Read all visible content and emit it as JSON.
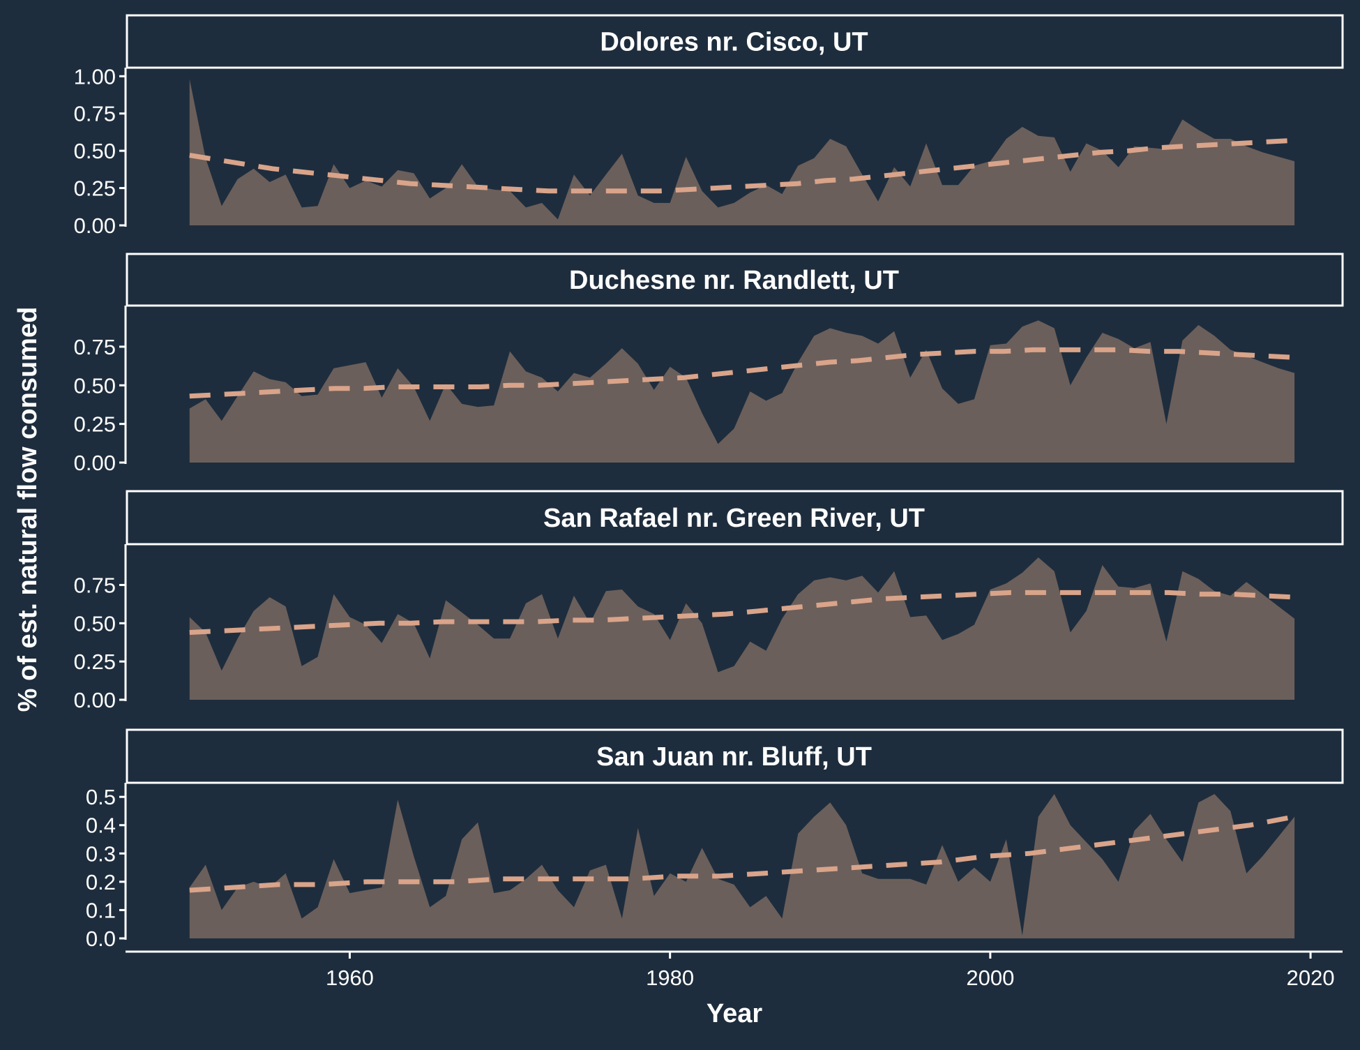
{
  "colors": {
    "background": "#1e2d3d",
    "area_fill": "#6b5f5b",
    "trend_line": "#d9a48a",
    "text": "#ffffff",
    "axis": "#ffffff"
  },
  "chart_data": {
    "type": "area",
    "xlabel": "Year",
    "ylabel": "% of est. natural flow consumed",
    "xlim": [
      1946,
      2022
    ],
    "xticks": [
      "1960",
      "1980",
      "2000",
      "2020"
    ],
    "x_start": 1950,
    "legend": "none",
    "grid": false,
    "panels": [
      {
        "title": "Dolores nr. Cisco, UT",
        "ylim": [
          0,
          1.02
        ],
        "yticks": [
          "0.00",
          "0.25",
          "0.50",
          "0.75",
          "1.00"
        ],
        "values": [
          0.98,
          0.45,
          0.13,
          0.31,
          0.38,
          0.29,
          0.34,
          0.12,
          0.13,
          0.41,
          0.25,
          0.3,
          0.26,
          0.37,
          0.35,
          0.18,
          0.25,
          0.41,
          0.26,
          0.24,
          0.23,
          0.12,
          0.15,
          0.04,
          0.34,
          0.2,
          0.34,
          0.48,
          0.2,
          0.15,
          0.15,
          0.46,
          0.23,
          0.12,
          0.15,
          0.22,
          0.27,
          0.21,
          0.4,
          0.45,
          0.58,
          0.53,
          0.34,
          0.16,
          0.39,
          0.26,
          0.55,
          0.27,
          0.27,
          0.4,
          0.43,
          0.58,
          0.66,
          0.6,
          0.59,
          0.36,
          0.55,
          0.5,
          0.39,
          0.53,
          0.52,
          0.51,
          0.71,
          0.64,
          0.58,
          0.58,
          0.53,
          0.49,
          0.46,
          0.43
        ],
        "trend": [
          0.47,
          0.44,
          0.41,
          0.38,
          0.36,
          0.34,
          0.32,
          0.3,
          0.28,
          0.27,
          0.26,
          0.25,
          0.24,
          0.23,
          0.23,
          0.23,
          0.23,
          0.23,
          0.24,
          0.25,
          0.26,
          0.27,
          0.28,
          0.3,
          0.31,
          0.33,
          0.35,
          0.37,
          0.39,
          0.41,
          0.43,
          0.45,
          0.47,
          0.49,
          0.5,
          0.52,
          0.53,
          0.54,
          0.55,
          0.56,
          0.57
        ]
      },
      {
        "title": "Duchesne nr. Randlett, UT",
        "ylim": [
          0,
          0.98
        ],
        "yticks": [
          "0.00",
          "0.25",
          "0.50",
          "0.75"
        ],
        "values": [
          0.35,
          0.41,
          0.27,
          0.43,
          0.59,
          0.54,
          0.52,
          0.43,
          0.44,
          0.61,
          0.63,
          0.65,
          0.42,
          0.61,
          0.49,
          0.27,
          0.51,
          0.38,
          0.36,
          0.37,
          0.72,
          0.59,
          0.55,
          0.46,
          0.58,
          0.55,
          0.64,
          0.74,
          0.64,
          0.47,
          0.62,
          0.55,
          0.32,
          0.12,
          0.22,
          0.46,
          0.4,
          0.45,
          0.65,
          0.82,
          0.87,
          0.84,
          0.82,
          0.77,
          0.85,
          0.55,
          0.73,
          0.48,
          0.38,
          0.41,
          0.76,
          0.77,
          0.88,
          0.92,
          0.87,
          0.5,
          0.68,
          0.84,
          0.8,
          0.74,
          0.78,
          0.25,
          0.79,
          0.89,
          0.82,
          0.73,
          0.69,
          0.65,
          0.61,
          0.58
        ],
        "trend": [
          0.43,
          0.44,
          0.45,
          0.46,
          0.47,
          0.48,
          0.48,
          0.49,
          0.49,
          0.49,
          0.49,
          0.5,
          0.5,
          0.51,
          0.52,
          0.53,
          0.54,
          0.55,
          0.57,
          0.59,
          0.61,
          0.63,
          0.65,
          0.66,
          0.68,
          0.7,
          0.71,
          0.72,
          0.72,
          0.73,
          0.73,
          0.73,
          0.73,
          0.72,
          0.72,
          0.71,
          0.7,
          0.69,
          0.68
        ]
      },
      {
        "title": "San Rafael nr. Green River, UT",
        "ylim": [
          0,
          0.98
        ],
        "yticks": [
          "0.00",
          "0.25",
          "0.50",
          "0.75"
        ],
        "values": [
          0.54,
          0.44,
          0.19,
          0.4,
          0.58,
          0.67,
          0.61,
          0.22,
          0.28,
          0.69,
          0.54,
          0.49,
          0.37,
          0.56,
          0.5,
          0.27,
          0.65,
          0.57,
          0.49,
          0.4,
          0.4,
          0.63,
          0.69,
          0.4,
          0.68,
          0.5,
          0.71,
          0.72,
          0.61,
          0.56,
          0.39,
          0.63,
          0.5,
          0.18,
          0.22,
          0.38,
          0.32,
          0.53,
          0.69,
          0.78,
          0.8,
          0.78,
          0.81,
          0.7,
          0.84,
          0.54,
          0.55,
          0.39,
          0.43,
          0.49,
          0.72,
          0.76,
          0.83,
          0.93,
          0.84,
          0.44,
          0.58,
          0.88,
          0.74,
          0.73,
          0.76,
          0.38,
          0.84,
          0.79,
          0.71,
          0.68,
          0.77,
          0.69,
          0.61,
          0.53
        ],
        "trend": [
          0.44,
          0.45,
          0.46,
          0.47,
          0.48,
          0.49,
          0.5,
          0.5,
          0.51,
          0.51,
          0.51,
          0.51,
          0.52,
          0.52,
          0.53,
          0.54,
          0.55,
          0.56,
          0.58,
          0.6,
          0.62,
          0.64,
          0.66,
          0.67,
          0.68,
          0.69,
          0.7,
          0.7,
          0.7,
          0.7,
          0.7,
          0.7,
          0.69,
          0.69,
          0.68,
          0.67
        ]
      },
      {
        "title": "San Juan nr. Bluff, UT",
        "ylim": [
          0,
          0.53
        ],
        "yticks": [
          "0.0",
          "0.1",
          "0.2",
          "0.3",
          "0.4",
          "0.5"
        ],
        "values": [
          0.18,
          0.26,
          0.1,
          0.18,
          0.2,
          0.18,
          0.23,
          0.07,
          0.11,
          0.28,
          0.16,
          0.17,
          0.18,
          0.49,
          0.29,
          0.11,
          0.15,
          0.35,
          0.41,
          0.16,
          0.17,
          0.21,
          0.26,
          0.17,
          0.11,
          0.24,
          0.26,
          0.07,
          0.39,
          0.15,
          0.23,
          0.2,
          0.32,
          0.21,
          0.19,
          0.11,
          0.15,
          0.07,
          0.37,
          0.43,
          0.48,
          0.4,
          0.23,
          0.21,
          0.21,
          0.21,
          0.19,
          0.33,
          0.2,
          0.25,
          0.2,
          0.35,
          0.01,
          0.43,
          0.51,
          0.4,
          0.34,
          0.28,
          0.2,
          0.38,
          0.44,
          0.35,
          0.27,
          0.48,
          0.51,
          0.45,
          0.23,
          0.29,
          0.36,
          0.43
        ],
        "trend": [
          0.17,
          0.18,
          0.19,
          0.19,
          0.2,
          0.2,
          0.2,
          0.21,
          0.21,
          0.21,
          0.21,
          0.22,
          0.22,
          0.23,
          0.24,
          0.25,
          0.26,
          0.27,
          0.29,
          0.3,
          0.32,
          0.34,
          0.36,
          0.38,
          0.4,
          0.43
        ]
      }
    ]
  }
}
